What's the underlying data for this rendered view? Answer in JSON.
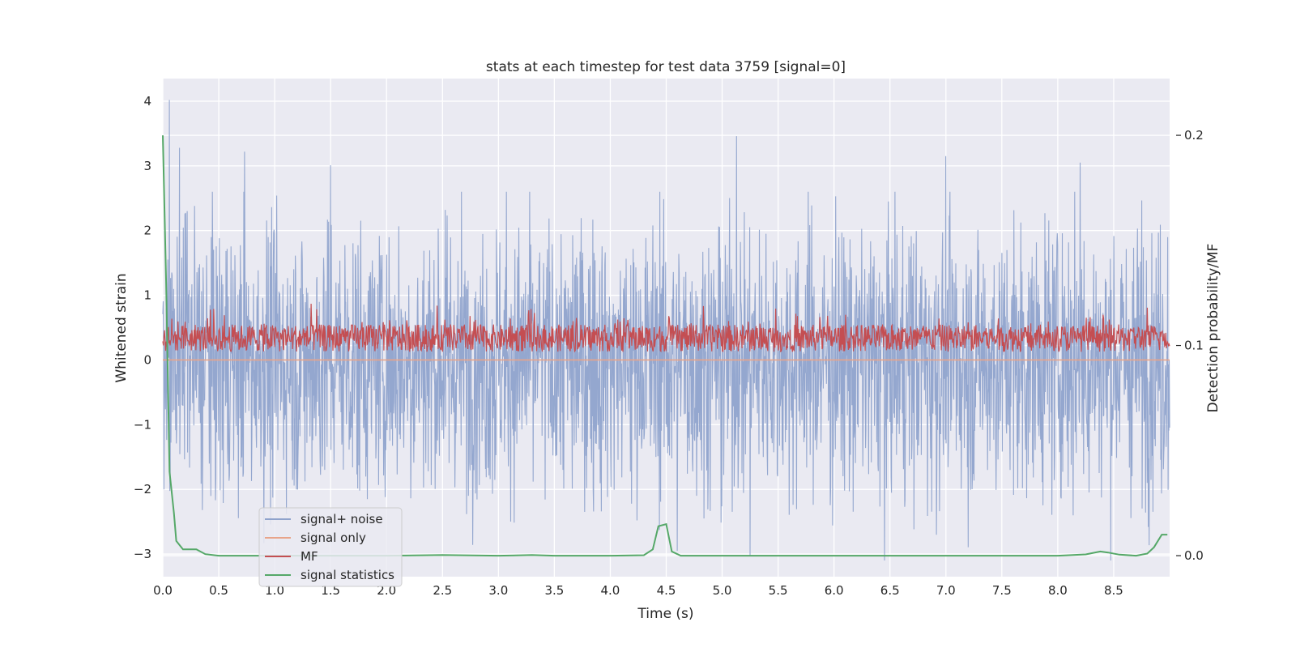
{
  "chart_data": {
    "type": "line",
    "title": "stats at each timestep for test data 3759 [signal=0]",
    "xlabel": "Time (s)",
    "ylabel": "Whitened strain",
    "y2label": "Detection probability/MF",
    "xlim": [
      0.0,
      9.0
    ],
    "ylim": [
      -3.35,
      4.35
    ],
    "y2lim": [
      -0.01,
      0.227
    ],
    "x_ticks": [
      0.0,
      0.5,
      1.0,
      1.5,
      2.0,
      2.5,
      3.0,
      3.5,
      4.0,
      4.5,
      5.0,
      5.5,
      6.0,
      6.5,
      7.0,
      7.5,
      8.0,
      8.5
    ],
    "x_tick_labels": [
      "0.0",
      "0.5",
      "1.0",
      "1.5",
      "2.0",
      "2.5",
      "3.0",
      "3.5",
      "4.0",
      "4.5",
      "5.0",
      "5.5",
      "6.0",
      "6.5",
      "7.0",
      "7.5",
      "8.0",
      "8.5"
    ],
    "y_ticks": [
      -3,
      -2,
      -1,
      0,
      1,
      2,
      3,
      4
    ],
    "y_tick_labels": [
      "−3",
      "−2",
      "−1",
      "0",
      "1",
      "2",
      "3",
      "4"
    ],
    "y2_ticks": [
      0.0,
      0.1,
      0.2
    ],
    "y2_tick_labels": [
      "0.0",
      "0.1",
      "0.2"
    ],
    "grid": true,
    "legend_position": "lower-left",
    "series": [
      {
        "name": "signal+ noise",
        "color": "#8fa3cc",
        "axis": "left",
        "style": "dense noise",
        "approx_range": [
          -3.1,
          4.0
        ],
        "peaks": [
          {
            "x": 0.06,
            "y": 4.02
          },
          {
            "x": 0.15,
            "y": 3.28
          },
          {
            "x": 0.73,
            "y": 3.22
          },
          {
            "x": 1.5,
            "y": 3.01
          },
          {
            "x": 5.13,
            "y": 3.46
          },
          {
            "x": 7.0,
            "y": 3.15
          },
          {
            "x": 8.2,
            "y": 3.05
          },
          {
            "x": 6.45,
            "y": -3.1
          },
          {
            "x": 5.25,
            "y": -3.02
          },
          {
            "x": 4.6,
            "y": -2.95
          }
        ]
      },
      {
        "name": "signal only",
        "color": "#e8a48a",
        "axis": "left",
        "x": [
          0.0,
          9.0
        ],
        "y": [
          0.0,
          0.0
        ]
      },
      {
        "name": "MF",
        "color": "#c44e52",
        "axis": "right",
        "style": "dense noise",
        "approx_range": [
          0.095,
          0.125
        ]
      },
      {
        "name": "signal statistics",
        "color": "#55a868",
        "axis": "right",
        "x": [
          0.0,
          0.03,
          0.06,
          0.1,
          0.12,
          0.18,
          0.3,
          0.38,
          0.5,
          1.0,
          2.0,
          2.5,
          3.0,
          3.3,
          3.5,
          4.0,
          4.3,
          4.38,
          4.43,
          4.5,
          4.55,
          4.63,
          5.0,
          5.5,
          6.0,
          7.0,
          8.0,
          8.25,
          8.38,
          8.45,
          8.55,
          8.7,
          8.8,
          8.86,
          8.93,
          8.98
        ],
        "y": [
          0.2,
          0.13,
          0.04,
          0.02,
          0.007,
          0.003,
          0.003,
          0.0007,
          0.0,
          0.0,
          0.0,
          0.0003,
          0.0,
          0.0003,
          0.0,
          0.0,
          0.0002,
          0.003,
          0.014,
          0.015,
          0.002,
          0.0,
          0.0,
          0.0,
          0.0,
          0.0,
          0.0,
          0.0006,
          0.002,
          0.0015,
          0.0005,
          0.0,
          0.001,
          0.004,
          0.01,
          0.01
        ]
      }
    ]
  }
}
